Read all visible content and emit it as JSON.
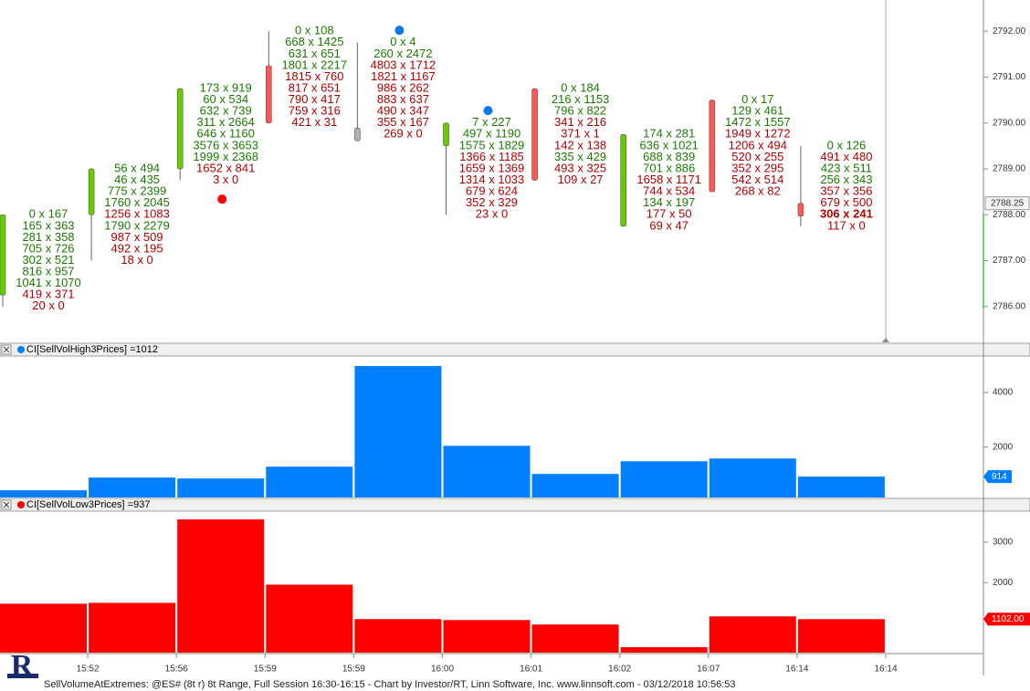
{
  "footer": "SellVolumeAtExtremes: @ES# (8t r) 8t Range, Full Session 16:30-16:15 - Chart by Investor/RT, Linn Software, Inc. www.linnsoft.com - 03/12/2018 10:56:53",
  "logo": "R",
  "chart_data": [
    {
      "type": "footprint",
      "ylim": [
        2785.22,
        2792.68
      ],
      "yticks": [
        {
          "value": 2786,
          "label": "2786.00"
        },
        {
          "value": 2787,
          "label": "2787.00"
        },
        {
          "value": 2788,
          "label": "2788.00"
        },
        {
          "value": 2789,
          "label": "2789.00"
        },
        {
          "value": 2790,
          "label": "2790.00"
        },
        {
          "value": 2791,
          "label": "2791.00"
        },
        {
          "value": 2792,
          "label": "2792.00"
        }
      ],
      "last_price": {
        "value": 2788.25,
        "label": "2788.25"
      },
      "up_color": "#66cc00",
      "down_color": "#ff5555",
      "flat_color": "#b0b0b0",
      "bid_color": "#b00000",
      "ask_color": "#1a7a00",
      "candles": [
        {
          "open": 2786.25,
          "high": 2788.0,
          "low": 2786.0,
          "close": 2788.0,
          "rows": [
            "0 x 167",
            "165 x 363",
            "281 x 358",
            "705 x 726",
            "302 x 521",
            "816 x 957",
            "1041 x 1070",
            "419 x 371",
            "20 x 0"
          ]
        },
        {
          "open": 2788.0,
          "high": 2789.0,
          "low": 2787.0,
          "close": 2789.0,
          "rows": [
            "56 x 494",
            "46 x 435",
            "775 x 2399",
            "1760 x 2045",
            "1256 x 1083",
            "1790 x 2279",
            "987 x 509",
            "492 x 195",
            "18 x 0"
          ]
        },
        {
          "open": 2789.0,
          "high": 2790.75,
          "low": 2788.75,
          "close": 2790.75,
          "rows": [
            "173 x 919",
            "60 x 534",
            "632 x 739",
            "311 x 2664",
            "646 x 1160",
            "3576 x 3653",
            "1999 x 2368",
            "1652 x 841",
            "3 x 0"
          ]
        },
        {
          "open": 2791.25,
          "high": 2792.0,
          "low": 2790.0,
          "close": 2790.0,
          "rows": [
            "0 x 108",
            "668 x 1425",
            "631 x 651",
            "1801 x 2217",
            "1815 x 760",
            "817 x 651",
            "790 x 417",
            "759 x 316",
            "421 x 31"
          ]
        },
        {
          "open": 2789.75,
          "high": 2791.75,
          "low": 2789.75,
          "close": 2789.75,
          "rows": [
            "0 x 4",
            "260 x 2472",
            "4803 x 1712",
            "1821 x 1167",
            "986 x 262",
            "883 x 637",
            "490 x 347",
            "355 x 167",
            "269 x 0"
          ]
        },
        {
          "open": 2789.5,
          "high": 2790.0,
          "low": 2788.0,
          "close": 2790.0,
          "rows": [
            "7 x 227",
            "497 x 1190",
            "1575 x 1829",
            "1366 x 1185",
            "1659 x 1369",
            "1314 x 1033",
            "679 x 624",
            "352 x 329",
            "23 x 0"
          ]
        },
        {
          "open": 2790.75,
          "high": 2790.75,
          "low": 2788.75,
          "close": 2788.75,
          "rows": [
            "0 x 184",
            "216 x 1153",
            "796 x 822",
            "341 x 216",
            "371 x 1",
            "142 x 138",
            "335 x 429",
            "493 x 325",
            "109 x 27"
          ]
        },
        {
          "open": 2787.75,
          "high": 2789.75,
          "low": 2787.75,
          "close": 2789.75,
          "rows": [
            "174 x 281",
            "636 x 1021",
            "688 x 839",
            "701 x 886",
            "1658 x 1171",
            "744 x 534",
            "134 x 197",
            "177 x 50",
            "69 x 47"
          ]
        },
        {
          "open": 2790.5,
          "high": 2790.5,
          "low": 2788.5,
          "close": 2788.5,
          "rows": [
            "0 x 17",
            "129 x 461",
            "1472 x 1557",
            "1949 x 1272",
            "1206 x 494",
            "520 x 255",
            "352 x 295",
            "542 x 514",
            "268 x 82"
          ]
        },
        {
          "open": 2788.25,
          "high": 2789.5,
          "low": 2787.75,
          "close": 2788.0,
          "rows": [
            "0 x 126",
            "491 x 480",
            "423 x 511",
            "256 x 343",
            "357 x 356",
            "679 x 500",
            "306 x 241",
            "117 x 0"
          ]
        }
      ],
      "signals": [
        {
          "bar": 2,
          "value": 2788.34,
          "color": "#ff0000"
        },
        {
          "bar": 4,
          "value": 2792.02,
          "color": "#0a78f0"
        },
        {
          "bar": 5,
          "value": 2790.27,
          "color": "#0a78f0"
        }
      ]
    },
    {
      "type": "bar",
      "title": "CI[SellVolHigh3Prices] =1012",
      "color": "#0080ff",
      "values": [
        415,
        880,
        847,
        1279,
        4967,
        2043,
        1013,
        1478,
        1578,
        914
      ],
      "ylim": [
        150,
        5300
      ],
      "yticks": [
        2000,
        4000
      ],
      "last_value": 914
    },
    {
      "type": "bar",
      "title": "CI[SellVolLow3Prices] =937",
      "color": "#ff0000",
      "values": [
        1482,
        1504,
        3558,
        1951,
        1103,
        1080,
        969,
        411,
        1170,
        1102
      ],
      "ylim": [
        277,
        3737
      ],
      "yticks": [
        2000,
        3000
      ],
      "last_value": 1102,
      "last_value_label": "1102.00",
      "categories": [
        "15:52",
        "15:56",
        "15:59",
        "15:59",
        "16:00",
        "16:01",
        "16:02",
        "16:07",
        "16:14",
        "16:14"
      ]
    }
  ]
}
